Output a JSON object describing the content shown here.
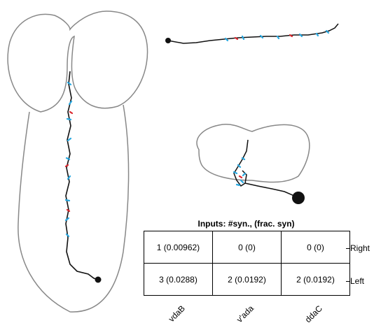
{
  "table": {
    "title": "Inputs: #syn., (frac. syn)",
    "columns": [
      "vdaB",
      "v'ada",
      "ddaC"
    ],
    "rows": [
      {
        "label": "Right",
        "cells": [
          "1 (0.00962)",
          "0 (0)",
          "0 (0)"
        ]
      },
      {
        "label": "Left",
        "cells": [
          "3 (0.0288)",
          "2 (0.0192)",
          "2 (0.0192)"
        ]
      }
    ]
  },
  "colors": {
    "outline": "#888888",
    "neuron": "#111111",
    "synapse_blue": "#29a8e0",
    "synapse_red": "#d9262c"
  }
}
